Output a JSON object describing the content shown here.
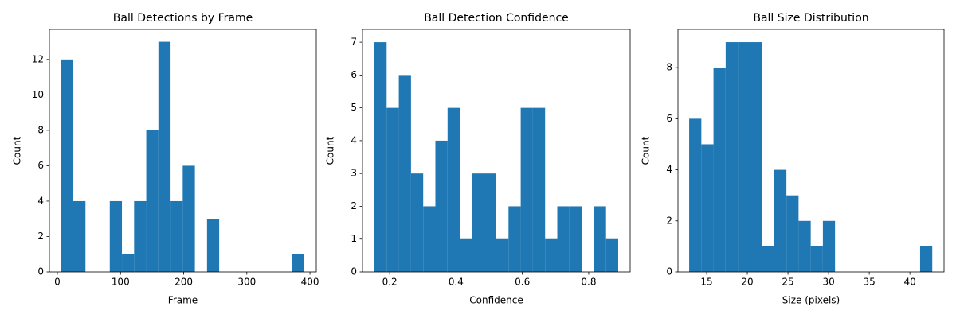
{
  "chart_data": [
    {
      "type": "histogram",
      "title": "Ball Detections by Frame",
      "xlabel": "Frame",
      "ylabel": "Count",
      "color": "#1f77b4",
      "bins": [
        6,
        25.25,
        44.5,
        63.75,
        83,
        102.25,
        121.5,
        140.75,
        160,
        179.25,
        198.5,
        217.75,
        237,
        256.25,
        275.5,
        294.75,
        314,
        333.25,
        352.5,
        371.75,
        391
      ],
      "values": [
        12,
        4,
        0,
        0,
        4,
        1,
        4,
        8,
        13,
        4,
        6,
        0,
        3,
        0,
        0,
        0,
        0,
        0,
        0,
        1
      ],
      "xlim": [
        -12.6,
        410
      ],
      "ylim": [
        0,
        13.7
      ],
      "xticks": [
        0,
        100,
        200,
        300,
        400
      ],
      "yticks": [
        0,
        2,
        4,
        6,
        8,
        10,
        12
      ]
    },
    {
      "type": "histogram",
      "title": "Ball Detection Confidence",
      "xlabel": "Confidence",
      "ylabel": "Count",
      "color": "#1f77b4",
      "bins": [
        0.154,
        0.19075,
        0.2275,
        0.26425,
        0.301,
        0.33775,
        0.3745,
        0.41125,
        0.448,
        0.48475,
        0.5215,
        0.55825,
        0.595,
        0.63175,
        0.6685,
        0.70525,
        0.742,
        0.77875,
        0.8155,
        0.85225,
        0.889
      ],
      "values": [
        7,
        5,
        6,
        3,
        2,
        4,
        5,
        1,
        3,
        3,
        1,
        2,
        5,
        5,
        1,
        2,
        2,
        0,
        2,
        1
      ],
      "xlim": [
        0.118,
        0.925
      ],
      "ylim": [
        0,
        7.39
      ],
      "xticks": [
        0.2,
        0.4,
        0.6,
        0.8
      ],
      "yticks": [
        0,
        1,
        2,
        3,
        4,
        5,
        6,
        7
      ]
    },
    {
      "type": "histogram",
      "title": "Ball Size Distribution",
      "xlabel": "Size (pixels)",
      "ylabel": "Count",
      "color": "#1f77b4",
      "bins": [
        12.85,
        14.345,
        15.84,
        17.335,
        18.83,
        20.325,
        21.82,
        23.315,
        24.81,
        26.305,
        27.8,
        29.295,
        30.79,
        32.285,
        33.78,
        35.275,
        36.77,
        38.265,
        39.76,
        41.255,
        42.75
      ],
      "values": [
        6,
        5,
        8,
        9,
        9,
        9,
        1,
        4,
        3,
        2,
        1,
        2,
        0,
        0,
        0,
        0,
        0,
        0,
        0,
        1
      ],
      "xlim": [
        11.47,
        44.2
      ],
      "ylim": [
        0,
        9.5
      ],
      "xticks": [
        15,
        20,
        25,
        30,
        35,
        40
      ],
      "yticks": [
        0,
        2,
        4,
        6,
        8
      ]
    }
  ]
}
